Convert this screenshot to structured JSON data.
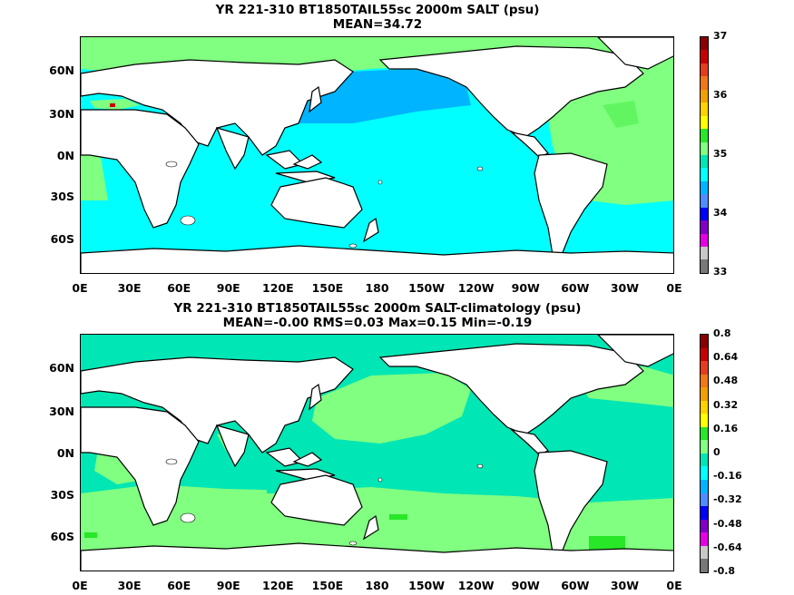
{
  "panels": [
    {
      "title_line1": "YR 221-310 BT1850TAIL55sc 2000m SALT (psu)",
      "title_line2": "MEAN=34.72",
      "colorbar_labels": [
        "37",
        "36",
        "35",
        "34",
        "33"
      ],
      "colorbar_colors": [
        "#8b0000",
        "#c80000",
        "#e63c1e",
        "#f07818",
        "#f0a000",
        "#ffd200",
        "#ffff00",
        "#28e628",
        "#80ff80",
        "#00e6b4",
        "#00ffff",
        "#00b4ff",
        "#508cff",
        "#0000ff",
        "#8200c8",
        "#e600e6",
        "#c8c8c8",
        "#787878"
      ],
      "fill_colors": {
        "ocean": "#00ffff",
        "north_pacific": "#00b4ff",
        "atlantic": "#80ff80",
        "mediterranean": "#c80000",
        "indian_west": "#00e6b4"
      }
    },
    {
      "title_line1": "YR 221-310 BT1850TAIL55sc 2000m SALT-climatology (psu)",
      "title_line2": "MEAN=-0.00   RMS=0.03   Max=0.15   Min=-0.19",
      "colorbar_labels": [
        "0.8",
        "0.64",
        "0.48",
        "0.32",
        "0.16",
        "0",
        "-0.16",
        "-0.32",
        "-0.48",
        "-0.64",
        "-0.8"
      ],
      "colorbar_colors": [
        "#8b0000",
        "#c80000",
        "#e63c1e",
        "#f07818",
        "#f0a000",
        "#ffd200",
        "#ffff00",
        "#28e628",
        "#80ff80",
        "#00e6b4",
        "#00ffff",
        "#00b4ff",
        "#508cff",
        "#0000ff",
        "#8200c8",
        "#e600e6",
        "#c8c8c8",
        "#787878"
      ],
      "fill_colors": {
        "ocean": "#00e6b4",
        "southern": "#80ff80",
        "hotspot": "#28e628"
      }
    }
  ],
  "lat_labels": [
    "60N",
    "30N",
    "0N",
    "30S",
    "60S"
  ],
  "lon_labels": [
    "0E",
    "30E",
    "60E",
    "90E",
    "120E",
    "150E",
    "180",
    "150W",
    "120W",
    "90W",
    "60W",
    "30W",
    "0E"
  ],
  "land_color": "#ffffff",
  "coast_color": "#000000"
}
